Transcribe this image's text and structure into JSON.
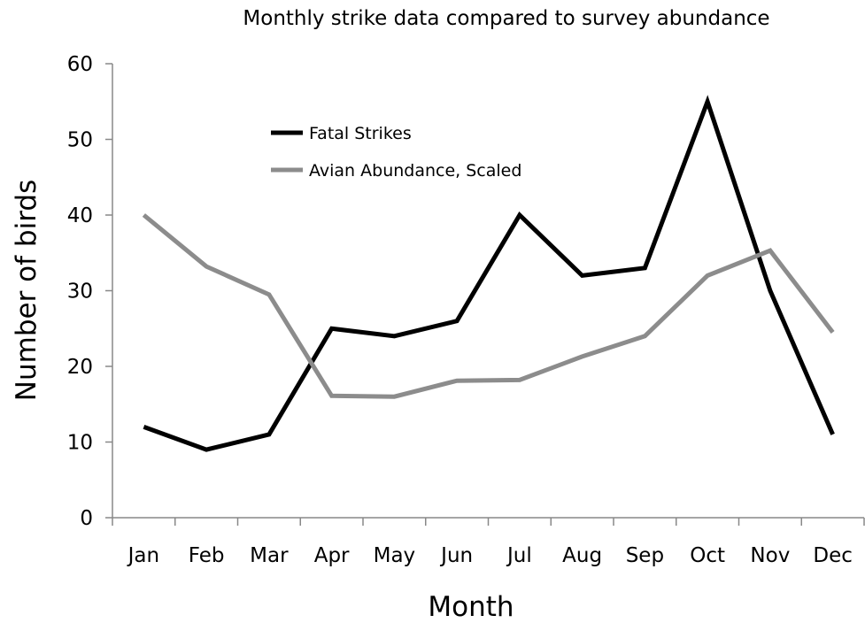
{
  "chart_data": {
    "type": "line",
    "title": "Monthly strike data compared to survey abundance",
    "xlabel": "Month",
    "ylabel": "Number of birds",
    "categories": [
      "Jan",
      "Feb",
      "Mar",
      "Apr",
      "May",
      "Jun",
      "Jul",
      "Aug",
      "Sep",
      "Oct",
      "Nov",
      "Dec"
    ],
    "ylim": [
      0,
      60
    ],
    "yticks": [
      "0",
      "10",
      "20",
      "30",
      "40",
      "50",
      "60"
    ],
    "grid": false,
    "legend_position": "top-left",
    "series": [
      {
        "name": "Fatal Strikes",
        "color": "#000000",
        "values": [
          12,
          9,
          11,
          25,
          24,
          26,
          40,
          32,
          33,
          55,
          30,
          11
        ]
      },
      {
        "name": "Avian Abundance, Scaled",
        "color": "#8c8c8c",
        "values": [
          40,
          33.2,
          29.5,
          16.1,
          16,
          18.1,
          18.2,
          21.3,
          24,
          32,
          35.3,
          24.5
        ]
      }
    ]
  }
}
